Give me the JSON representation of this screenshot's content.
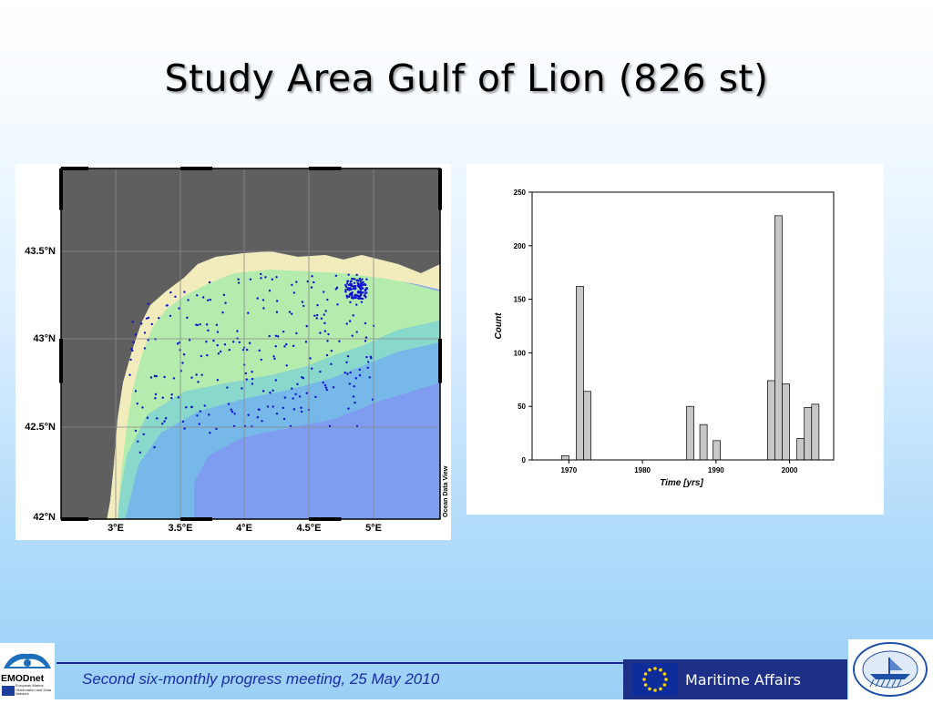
{
  "slide": {
    "title": "Study Area Gulf of Lion (826 st)",
    "footer_text": "Second six-monthly progress meeting, 25 May 2010"
  },
  "map": {
    "lat_labels": [
      "43.5°N",
      "43°N",
      "42.5°N",
      "42°N"
    ],
    "lon_labels": [
      "3°E",
      "3.5°E",
      "4°E",
      "4.5°E",
      "5°E"
    ],
    "credit": "Ocean Data View",
    "land_color": "#5f5f5f",
    "station_color": "#1010d0"
  },
  "chart_data": {
    "type": "bar",
    "xlabel": "Time [yrs]",
    "ylabel": "Count",
    "xlim": [
      1965,
      2006
    ],
    "ylim": [
      0,
      250
    ],
    "x_ticks": [
      1970,
      1980,
      1990,
      2000
    ],
    "y_ticks": [
      0,
      50,
      100,
      150,
      200,
      250
    ],
    "bar_color": "#c8c8c8",
    "bins": [
      {
        "start": 1969,
        "end": 1970,
        "count": 4
      },
      {
        "start": 1971,
        "end": 1972,
        "count": 162
      },
      {
        "start": 1972,
        "end": 1973,
        "count": 64
      },
      {
        "start": 1986,
        "end": 1987,
        "count": 50
      },
      {
        "start": 1987.8,
        "end": 1988.8,
        "count": 33
      },
      {
        "start": 1989.6,
        "end": 1990.6,
        "count": 18
      },
      {
        "start": 1997,
        "end": 1998,
        "count": 74
      },
      {
        "start": 1998,
        "end": 1999,
        "count": 228
      },
      {
        "start": 1999,
        "end": 2000,
        "count": 71
      },
      {
        "start": 2001,
        "end": 2002,
        "count": 20
      },
      {
        "start": 2002,
        "end": 2003,
        "count": 49
      },
      {
        "start": 2003,
        "end": 2004,
        "count": 52
      }
    ]
  },
  "logos": {
    "emodnet_name": "EMODnet",
    "emodnet_caption": "European Marine Observation and Data Network",
    "maritime_label": "Maritime Affairs"
  }
}
